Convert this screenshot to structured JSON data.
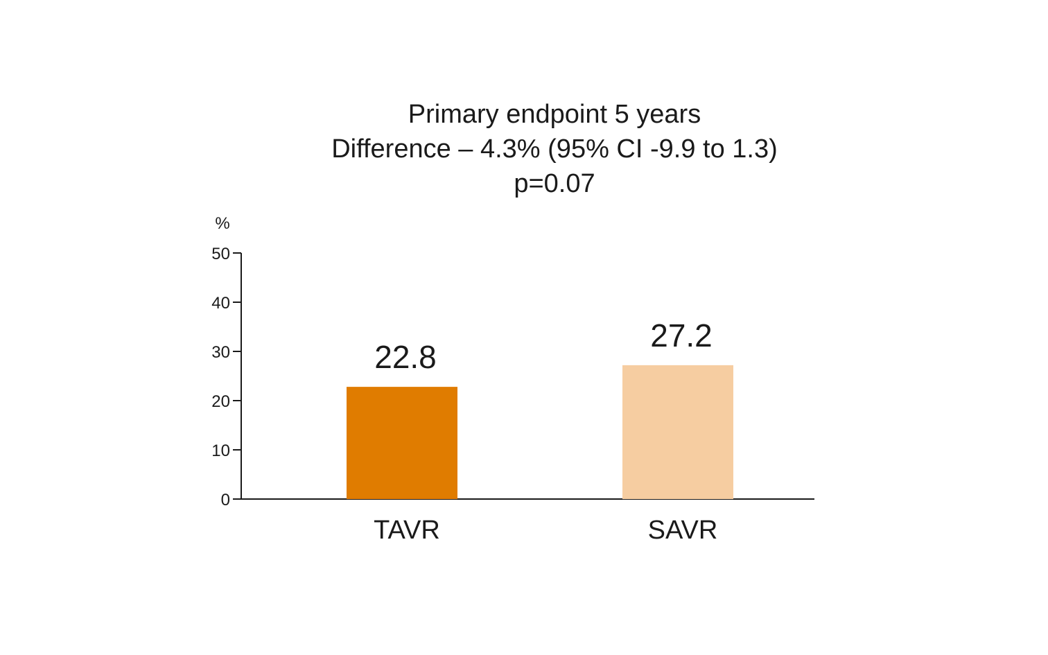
{
  "chart_data": {
    "type": "bar",
    "title": "Primary endpoint 5 years",
    "subtitle": "Difference – 4.3% (95% CI -9.9 to 1.3)",
    "annotation": "p=0.07",
    "ylabel": "%",
    "xlabel": "",
    "categories": [
      "TAVR",
      "SAVR"
    ],
    "values": [
      22.8,
      27.2
    ],
    "value_labels": [
      "22.8",
      "27.2"
    ],
    "colors": [
      "#e07c00",
      "#f6cda1"
    ],
    "ylim": [
      0,
      50
    ],
    "yticks": [
      0,
      10,
      20,
      30,
      40,
      50
    ],
    "ytick_labels": [
      "0",
      "10",
      "20",
      "30",
      "40",
      "50"
    ],
    "grid": false,
    "legend": "none"
  }
}
